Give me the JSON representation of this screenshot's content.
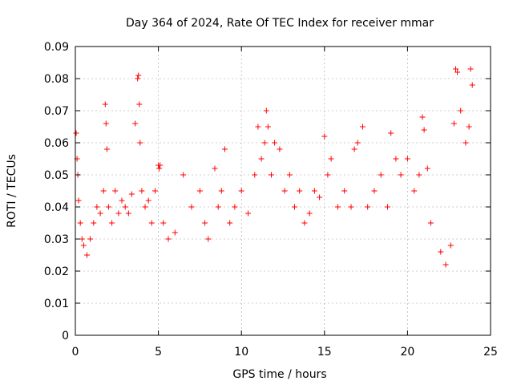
{
  "chart_data": {
    "type": "scatter",
    "title": "Day 364 of 2024, Rate Of TEC Index for receiver mmar",
    "xlabel": "GPS time / hours",
    "ylabel": "ROTI / TECUs",
    "xlim": [
      0,
      25
    ],
    "ylim": [
      0,
      0.09
    ],
    "xticks": [
      "0",
      "5",
      "10",
      "15",
      "20",
      "25"
    ],
    "yticks": [
      "0",
      "0.01",
      "0.02",
      "0.03",
      "0.04",
      "0.05",
      "0.06",
      "0.07",
      "0.08",
      "0.09"
    ],
    "grid": true,
    "marker": "+",
    "color": "#ff0000",
    "series": [
      {
        "x": [
          0.05,
          0.1,
          0.15,
          0.2,
          0.3,
          0.4,
          0.5,
          0.7,
          0.9,
          1.1,
          1.3,
          1.5,
          1.7,
          1.8,
          1.85,
          1.9,
          2.0,
          2.2,
          2.4,
          2.6,
          2.8,
          3.0,
          3.2,
          3.4,
          3.6,
          3.75,
          3.8,
          3.85,
          3.9,
          4.0,
          4.2,
          4.4,
          4.6,
          4.8,
          5.0,
          5.05,
          5.1,
          5.3,
          5.6,
          6.0,
          6.5,
          7.0,
          7.5,
          7.8,
          8.0,
          8.4,
          8.6,
          8.8,
          9.0,
          9.3,
          9.6,
          10.0,
          10.4,
          10.8,
          11.0,
          11.2,
          11.4,
          11.5,
          11.6,
          11.8,
          12.0,
          12.3,
          12.6,
          12.9,
          13.2,
          13.5,
          13.8,
          14.1,
          14.4,
          14.7,
          15.0,
          15.2,
          15.4,
          15.8,
          16.2,
          16.6,
          16.8,
          17.0,
          17.3,
          17.6,
          18.0,
          18.4,
          18.8,
          19.0,
          19.3,
          19.6,
          20.0,
          20.4,
          20.7,
          20.9,
          21.0,
          21.2,
          21.4,
          22.0,
          22.3,
          22.6,
          22.8,
          22.9,
          23.0,
          23.2,
          23.5,
          23.7,
          23.8,
          23.9
        ],
        "y": [
          0.063,
          0.055,
          0.05,
          0.042,
          0.035,
          0.03,
          0.028,
          0.025,
          0.03,
          0.035,
          0.04,
          0.038,
          0.045,
          0.072,
          0.066,
          0.058,
          0.04,
          0.035,
          0.045,
          0.038,
          0.042,
          0.04,
          0.038,
          0.044,
          0.066,
          0.08,
          0.081,
          0.072,
          0.06,
          0.045,
          0.04,
          0.042,
          0.035,
          0.045,
          0.053,
          0.052,
          0.053,
          0.035,
          0.03,
          0.032,
          0.05,
          0.04,
          0.045,
          0.035,
          0.03,
          0.052,
          0.04,
          0.045,
          0.058,
          0.035,
          0.04,
          0.045,
          0.038,
          0.05,
          0.065,
          0.055,
          0.06,
          0.07,
          0.065,
          0.05,
          0.06,
          0.058,
          0.045,
          0.05,
          0.04,
          0.045,
          0.035,
          0.038,
          0.045,
          0.043,
          0.062,
          0.05,
          0.055,
          0.04,
          0.045,
          0.04,
          0.058,
          0.06,
          0.065,
          0.04,
          0.045,
          0.05,
          0.04,
          0.063,
          0.055,
          0.05,
          0.055,
          0.045,
          0.05,
          0.068,
          0.064,
          0.052,
          0.035,
          0.026,
          0.022,
          0.028,
          0.066,
          0.083,
          0.082,
          0.07,
          0.06,
          0.065,
          0.083,
          0.078
        ]
      }
    ]
  }
}
